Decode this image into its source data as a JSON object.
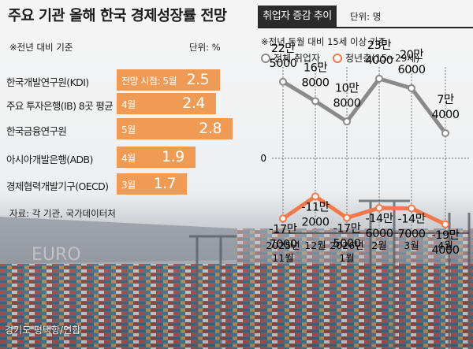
{
  "left": {
    "title": "주요 기관 올해 한국 경제성장률 전망",
    "basis": "※전년 대비 기준",
    "unit": "단위: %",
    "source": "자료: 각 기관, 국가데이터처"
  },
  "right": {
    "tab": "취업자 증감 추이",
    "unit": "단위: 명",
    "basis": "※전년 동월 대비 15세 이상 기준",
    "legend": [
      "전체 취업자",
      "청년층(15~29세)"
    ]
  },
  "photo_credit": "경기도 평택항/연합",
  "colors": {
    "bar": "#ef9b55",
    "total_line": "#8a8a8a",
    "youth_line": "#f2784b",
    "dark": "#2b2b2b"
  },
  "chart_data": [
    {
      "type": "bar",
      "orientation": "horizontal",
      "title": "주요 기관 올해 한국 경제성장률 전망",
      "categories": [
        "한국개발연구원(KDI)",
        "주요 투자은행(IB) 8곳 평균",
        "한국금융연구원",
        "아시아개발은행(ADB)",
        "경제협력개발기구(OECD)"
      ],
      "periods": [
        "전망 시점: 5월",
        "4월",
        "5월",
        "4월",
        "3월"
      ],
      "values": [
        2.5,
        2.4,
        2.8,
        1.9,
        1.7
      ],
      "value_labels": [
        "2.5",
        "2.4",
        "2.8",
        "1.9",
        "1.7"
      ],
      "xlim": [
        0,
        3.0
      ]
    },
    {
      "type": "line",
      "title": "취업자 증감 추이",
      "x": [
        "2025년 11월",
        "12월",
        "2026년 1월",
        "2월",
        "3월",
        "4월"
      ],
      "x_top": [
        "2025년",
        "12월",
        "2026년",
        "2월",
        "3월",
        "4월"
      ],
      "x_bottom": [
        "11월",
        "",
        "1월",
        "",
        "",
        ""
      ],
      "ylim": [
        -220000,
        280000
      ],
      "zero_label": "0",
      "series": [
        {
          "name": "전체 취업자",
          "values": [
            225000,
            168000,
            108000,
            234000,
            206000,
            74000
          ],
          "labels_top": [
            "22만",
            "16만",
            "10만",
            "23만",
            "20만",
            "7만"
          ],
          "labels_bottom": [
            "5000",
            "8000",
            "8000",
            "4000",
            "6000",
            "4000"
          ]
        },
        {
          "name": "청년층(15~29세)",
          "values": [
            -177000,
            -112000,
            -175000,
            -146000,
            -147000,
            -194000
          ],
          "labels_top": [
            "-17만",
            "-11만",
            "-17만",
            "-14만",
            "-14만",
            "-19만"
          ],
          "labels_bottom": [
            "7000",
            "2000",
            "5000",
            "6000",
            "7000",
            "4000"
          ]
        }
      ]
    }
  ]
}
